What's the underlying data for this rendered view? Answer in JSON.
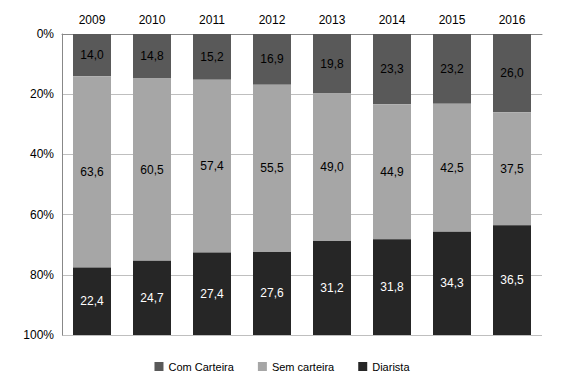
{
  "chart_data": {
    "type": "bar",
    "stacked": true,
    "data_labels": true,
    "grid": true,
    "legend": "bottom",
    "categories": [
      "2009",
      "2010",
      "2011",
      "2012",
      "2013",
      "2014",
      "2015",
      "2016"
    ],
    "ylim": [
      0,
      100
    ],
    "yticks": [
      {
        "value": 0,
        "label": "0%"
      },
      {
        "value": 20,
        "label": "20%"
      },
      {
        "value": 40,
        "label": "40%"
      },
      {
        "value": 60,
        "label": "60%"
      },
      {
        "value": 80,
        "label": "80%"
      },
      {
        "value": 100,
        "label": "100%"
      }
    ],
    "series": [
      {
        "name": "Com Carteira",
        "color": "#595959",
        "values": [
          14.0,
          14.8,
          15.2,
          16.9,
          19.8,
          23.3,
          23.2,
          26.0
        ],
        "value_labels": [
          "14,0",
          "14,8",
          "15,2",
          "16,9",
          "19,8",
          "23,3",
          "23,2",
          "26,0"
        ]
      },
      {
        "name": "Sem carteira",
        "color": "#a6a6a6",
        "values": [
          63.6,
          60.5,
          57.4,
          55.5,
          49.0,
          44.9,
          42.5,
          37.5
        ],
        "value_labels": [
          "63,6",
          "60,5",
          "57,4",
          "55,5",
          "49,0",
          "44,9",
          "42,5",
          "37,5"
        ]
      },
      {
        "name": "Diarista",
        "color": "#262626",
        "values": [
          22.4,
          24.7,
          27.4,
          27.6,
          31.2,
          31.8,
          34.3,
          36.5
        ],
        "value_labels": [
          "22,4",
          "24,7",
          "27,4",
          "27,6",
          "31,2",
          "31,8",
          "34,3",
          "36,5"
        ]
      }
    ]
  }
}
